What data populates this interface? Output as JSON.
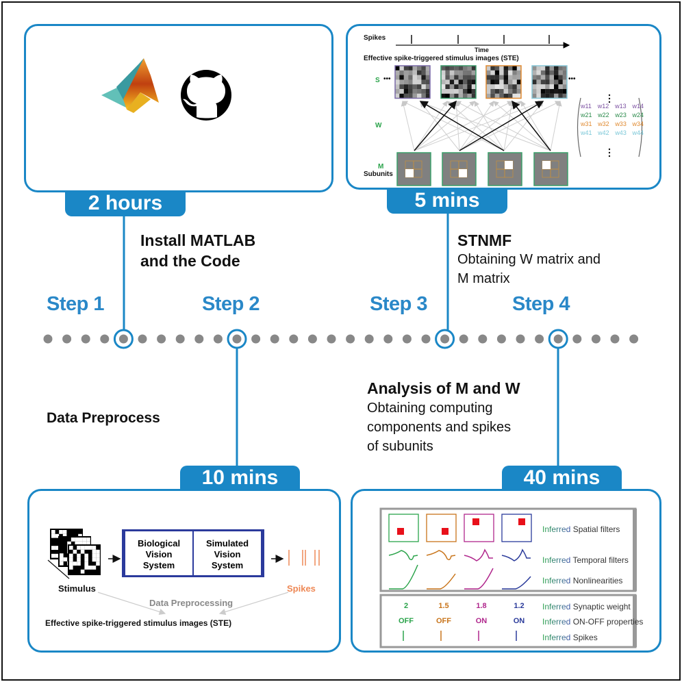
{
  "colors": {
    "accent": "#1a87c6",
    "step_text": "#2a88c8",
    "dot": "#888888",
    "green": "#2aa34a",
    "orange": "#c8741a",
    "magenta": "#b0268c",
    "navy": "#2a3a9a",
    "spike_orange": "#ee8855"
  },
  "steps": [
    {
      "label": "Step 1",
      "duration": "2 hours",
      "title": "Install MATLAB and the Code",
      "title_lines": [
        "Install MATLAB",
        "and the Code"
      ],
      "logos": [
        "matlab-logo",
        "github-logo"
      ]
    },
    {
      "label": "Step 2",
      "duration": "10 mins",
      "title": "Data Preprocess"
    },
    {
      "label": "Step 3",
      "duration": "5 mins",
      "title": "STNMF",
      "desc_lines": [
        "Obtaining W matrix and",
        "M matrix"
      ]
    },
    {
      "label": "Step 4",
      "duration": "40 mins",
      "title": "Analysis of M and W",
      "desc_lines": [
        "Obtaining computing",
        "components and spikes",
        "of subunits"
      ]
    }
  ],
  "stnmf_panel": {
    "spikes_label": "Spikes",
    "time_label": "Time",
    "ste_title": "Effective spike-triggered  stimulus images (STE)",
    "s_label": "S",
    "ellipsis": "•••",
    "w_label": "W",
    "m_label": "M",
    "subunits_label": "Subunits",
    "matrix_rows": [
      [
        "w11",
        "w12",
        "w13",
        "w14"
      ],
      [
        "w21",
        "w22",
        "w23",
        "w24"
      ],
      [
        "w31",
        "w32",
        "w33",
        "w34"
      ],
      [
        "w41",
        "w42",
        "w43",
        "w44"
      ]
    ],
    "matrix_row_colors": [
      "#7a4fa0",
      "#2a8a4a",
      "#e08a30",
      "#7cc8d8"
    ],
    "ste_border_colors": [
      "#7a6aa8",
      "#3a9a6a",
      "#e08a30",
      "#88c8d8"
    ]
  },
  "preprocess_panel": {
    "biological": [
      "Biological",
      "Vision",
      "System"
    ],
    "simulated": [
      "Simulated",
      "Vision",
      "System"
    ],
    "stimulus_label": "Stimulus",
    "spikes_label": "Spikes",
    "process_label": "Data Preprocessing",
    "output_label": "Effective spike-triggered  stimulus images (STE)"
  },
  "analysis_panel": {
    "inferred": "Inferred",
    "row_labels": [
      "Spatial filters",
      "Temporal filters",
      "Nonlinearities",
      "Synaptic weight",
      "ON-OFF properties",
      "Spikes"
    ],
    "weights": [
      "2",
      "1.5",
      "1.8",
      "1.2"
    ],
    "on_off": [
      "OFF",
      "OFF",
      "ON",
      "ON"
    ]
  }
}
